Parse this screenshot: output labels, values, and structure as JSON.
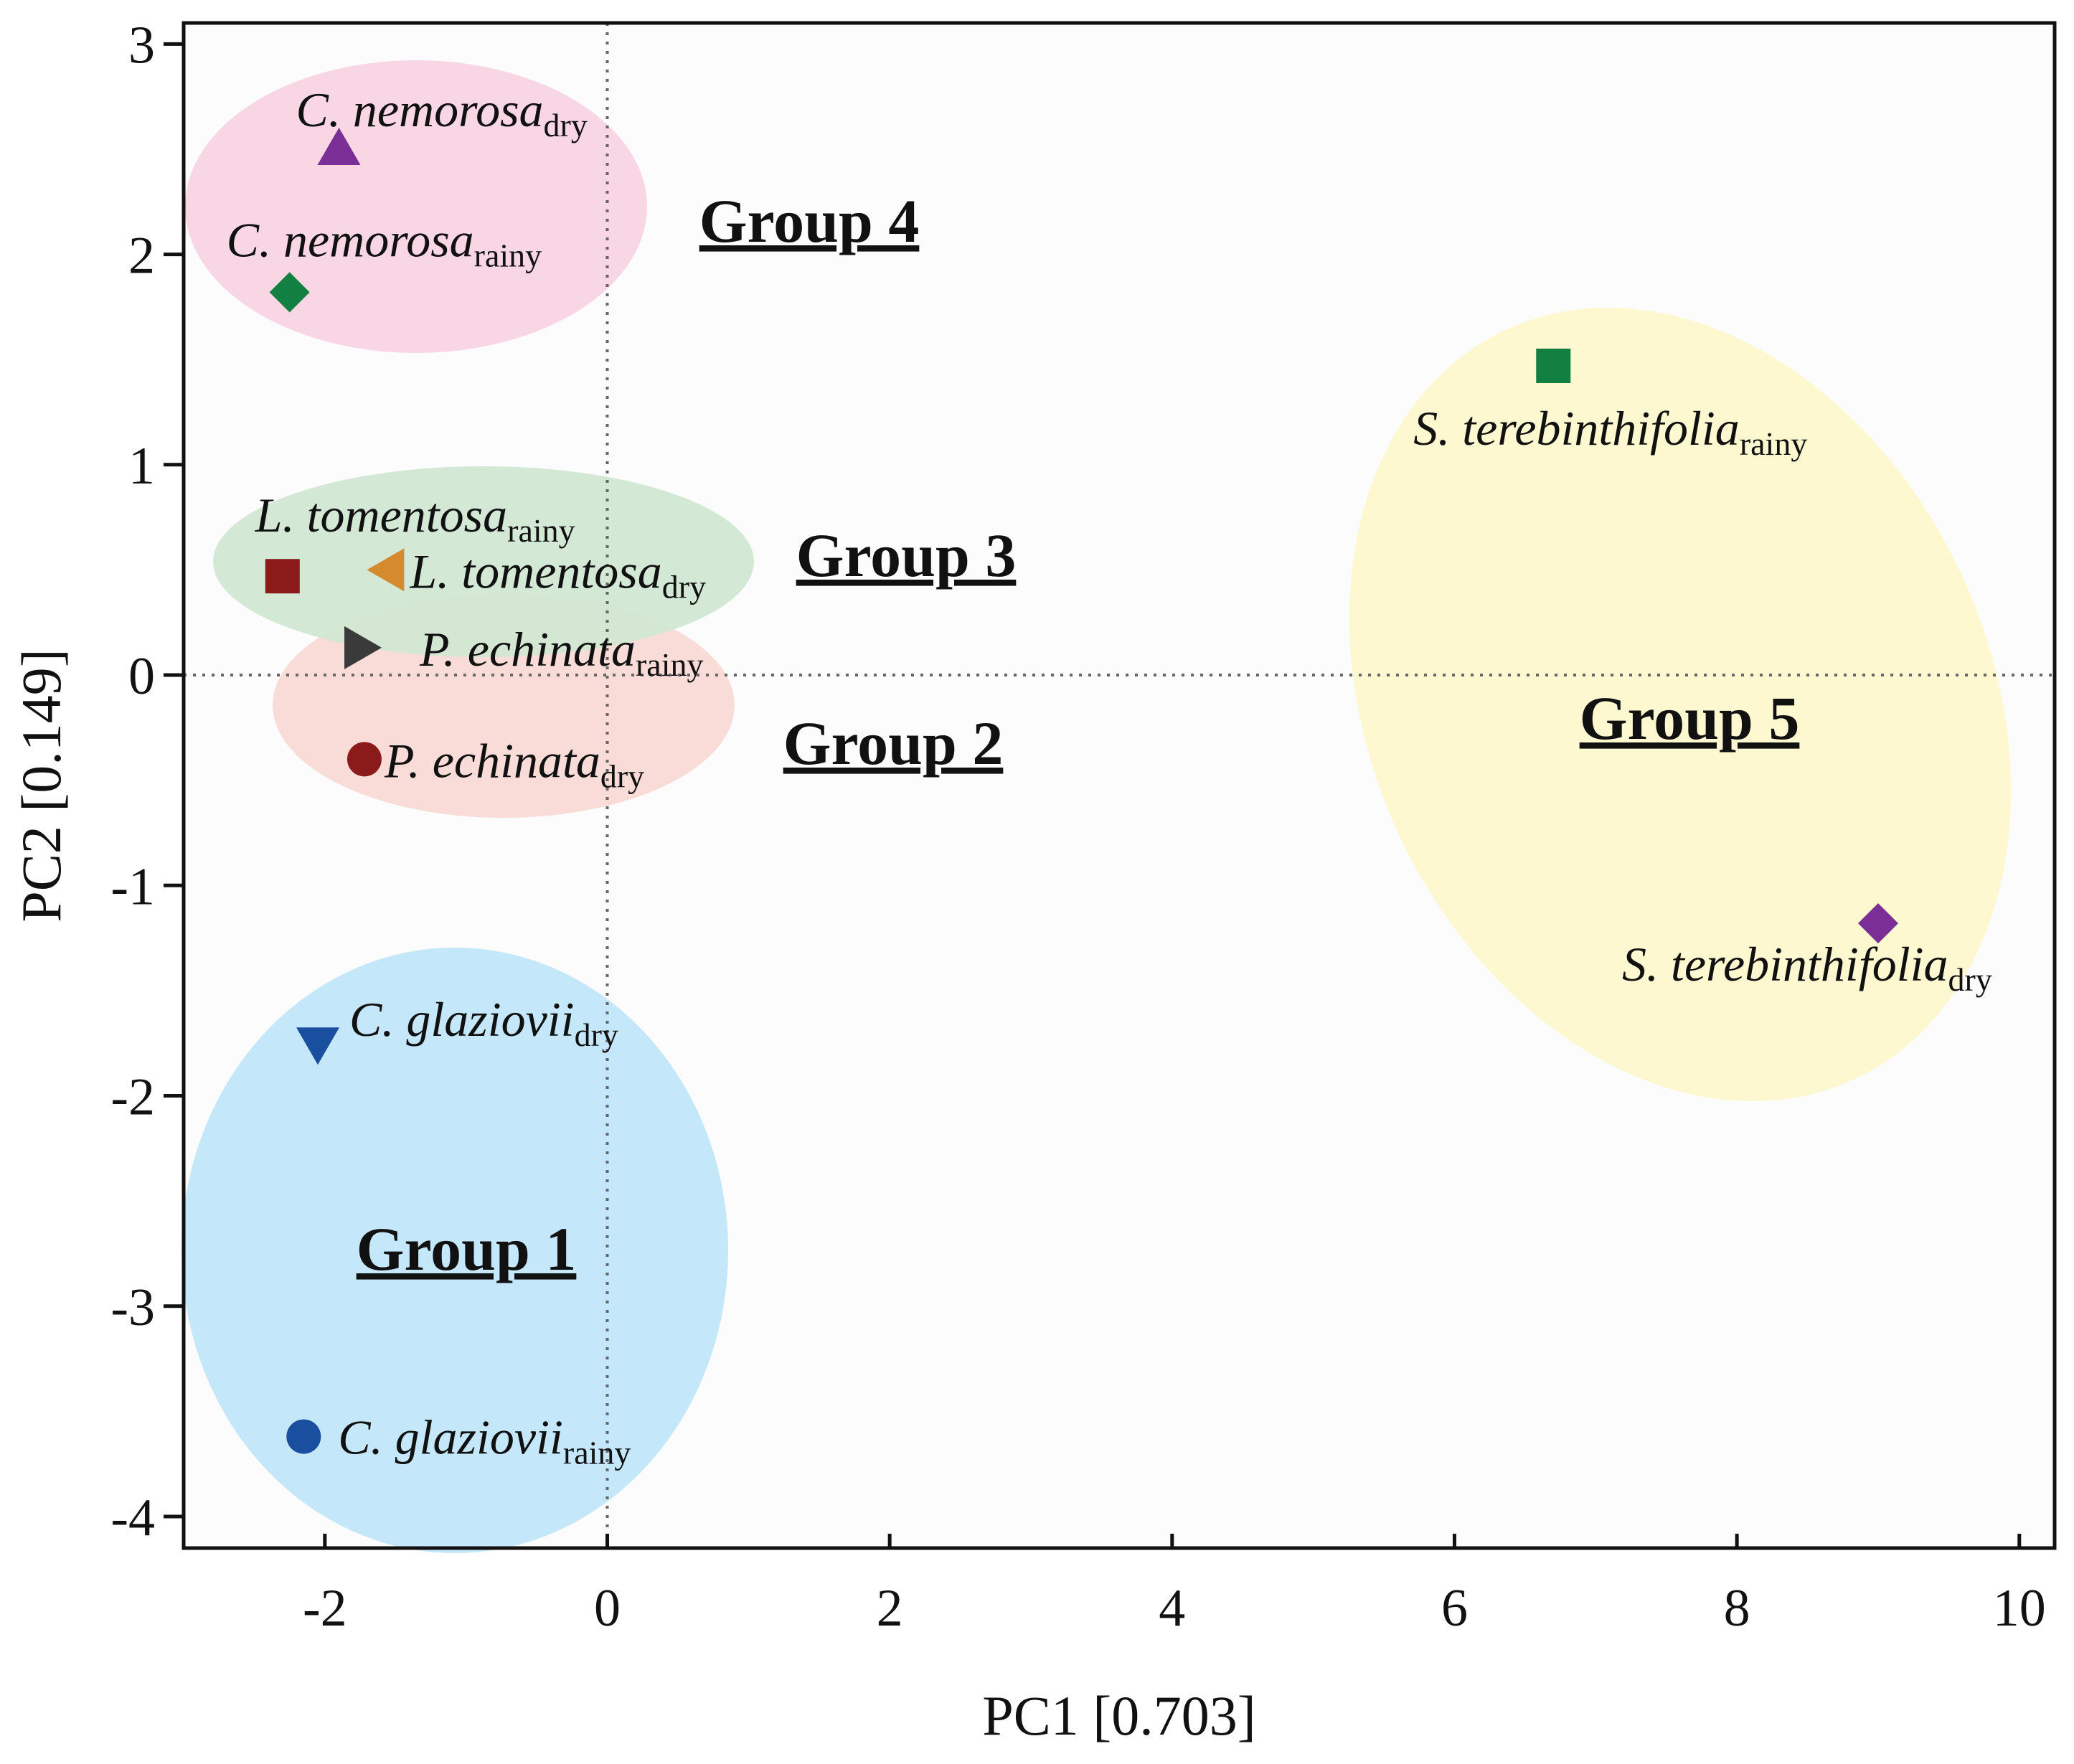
{
  "chart_data": {
    "type": "scatter",
    "xlabel": "PC1 [0.703]",
    "ylabel": "PC2 [0.149]",
    "xlim": [
      -3,
      10.25
    ],
    "ylim": [
      -4.15,
      3.1
    ],
    "xticks": [
      -2,
      0,
      2,
      4,
      6,
      8,
      10
    ],
    "yticks": [
      3,
      2,
      1,
      0,
      -1,
      -2,
      -3,
      -4
    ],
    "zero_reference_lines": true,
    "points": [
      {
        "species": "C. nemorosa",
        "season": "dry",
        "x": -1.9,
        "y": 2.5,
        "marker": "triangle-up",
        "color": "#7a2e96"
      },
      {
        "species": "C. nemorosa",
        "season": "rainy",
        "x": -2.25,
        "y": 1.82,
        "marker": "diamond",
        "color": "#128040"
      },
      {
        "species": "L. tomentosa",
        "season": "rainy",
        "x": -2.3,
        "y": 0.47,
        "marker": "square",
        "color": "#8b1a1a"
      },
      {
        "species": "L. tomentosa",
        "season": "dry",
        "x": -1.55,
        "y": 0.5,
        "marker": "triangle-left",
        "color": "#d68a2e"
      },
      {
        "species": "P. echinata",
        "season": "rainy",
        "x": -1.75,
        "y": 0.13,
        "marker": "triangle-right",
        "color": "#3a3a3a"
      },
      {
        "species": "P. echinata",
        "season": "dry",
        "x": -1.72,
        "y": -0.4,
        "marker": "circle",
        "color": "#8b1a1a"
      },
      {
        "species": "C. glaziovii",
        "season": "dry",
        "x": -2.05,
        "y": -1.75,
        "marker": "triangle-down",
        "color": "#1a4e9e"
      },
      {
        "species": "C. glaziovii",
        "season": "rainy",
        "x": -2.15,
        "y": -3.62,
        "marker": "circle",
        "color": "#1a4e9e"
      },
      {
        "species": "S. terebinthifolia",
        "season": "rainy",
        "x": 6.7,
        "y": 1.47,
        "marker": "square",
        "color": "#128040"
      },
      {
        "species": "S. terebinthifolia",
        "season": "dry",
        "x": 9.0,
        "y": -1.18,
        "marker": "diamond",
        "color": "#7a2e96"
      }
    ],
    "groups": [
      {
        "label": "Group 1",
        "color": "#bfe5f8",
        "members": [
          "C. glaziovii dry",
          "C. glaziovii rainy"
        ]
      },
      {
        "label": "Group 2",
        "color": "#f9d9d5",
        "members": [
          "P. echinata rainy",
          "P. echinata dry"
        ]
      },
      {
        "label": "Group 3",
        "color": "#cfe7d3",
        "members": [
          "L. tomentosa rainy",
          "L. tomentosa dry"
        ]
      },
      {
        "label": "Group 4",
        "color": "#f9d2e2",
        "members": [
          "C. nemorosa dry",
          "C. nemorosa rainy"
        ]
      },
      {
        "label": "Group 5",
        "color": "#fdf7cc",
        "members": [
          "S. terebinthifolia rainy",
          "S. terebinthifolia dry"
        ]
      }
    ]
  }
}
